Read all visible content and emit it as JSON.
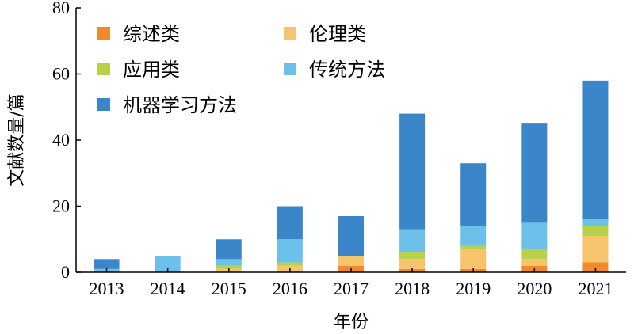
{
  "chart_data": {
    "type": "bar",
    "stacked": true,
    "title": "",
    "xlabel": "年份",
    "ylabel": "文献数量/篇",
    "categories": [
      "2013",
      "2014",
      "2015",
      "2016",
      "2017",
      "2018",
      "2019",
      "2020",
      "2021"
    ],
    "ylim": [
      0,
      80
    ],
    "yticks": [
      0,
      20,
      40,
      60,
      80
    ],
    "grid": false,
    "legend_position": "top-left",
    "series": [
      {
        "name": "综述类",
        "color": "#f08a2c",
        "values": [
          0,
          0,
          0,
          0,
          2,
          1,
          1,
          2,
          3
        ]
      },
      {
        "name": "伦理类",
        "color": "#f5c46c",
        "values": [
          0,
          0,
          1,
          2,
          3,
          3,
          6,
          2,
          8
        ]
      },
      {
        "name": "应用类",
        "color": "#b6d24a",
        "values": [
          0,
          0,
          1,
          1,
          0,
          2,
          1,
          3,
          3
        ]
      },
      {
        "name": "传统方法",
        "color": "#6cc0ea",
        "values": [
          1,
          5,
          2,
          7,
          0,
          7,
          6,
          8,
          2
        ]
      },
      {
        "name": "机器学习方法",
        "color": "#3a86c8",
        "values": [
          3,
          0,
          6,
          10,
          12,
          35,
          19,
          30,
          42
        ]
      }
    ]
  }
}
